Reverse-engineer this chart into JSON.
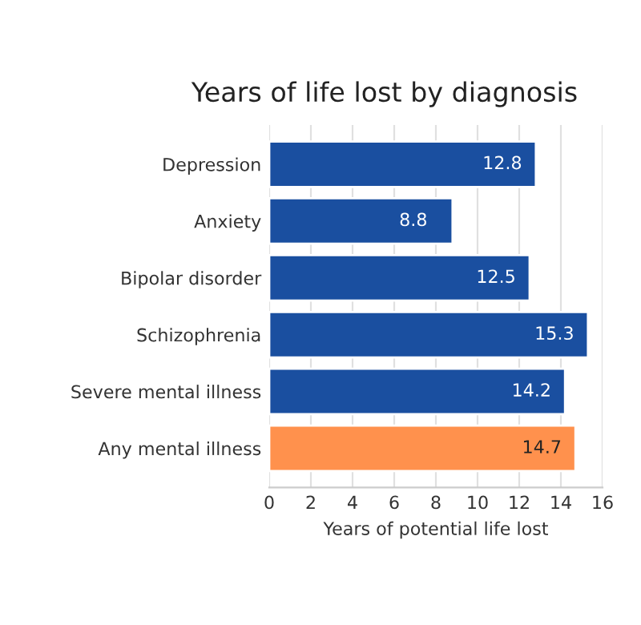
{
  "chart_data": {
    "type": "bar",
    "orientation": "horizontal",
    "title": "Years of life lost by diagnosis",
    "xlabel": "Years of potential life lost",
    "categories": [
      "Depression",
      "Anxiety",
      "Bipolar disorder",
      "Schizophrenia",
      "Severe mental illness",
      "Any mental illness"
    ],
    "values": [
      12.8,
      8.8,
      12.5,
      15.3,
      14.2,
      14.7
    ],
    "colors": [
      "#1a4fa0",
      "#1a4fa0",
      "#1a4fa0",
      "#1a4fa0",
      "#1a4fa0",
      "#ff914d"
    ],
    "value_labels": [
      "12.8",
      "8.8",
      "12.5",
      "15.3",
      "14.2",
      "14.7"
    ],
    "xlim": [
      0,
      16
    ],
    "xticks": [
      0,
      2,
      4,
      6,
      8,
      10,
      12,
      14,
      16
    ],
    "grid": "x",
    "legend": false
  }
}
